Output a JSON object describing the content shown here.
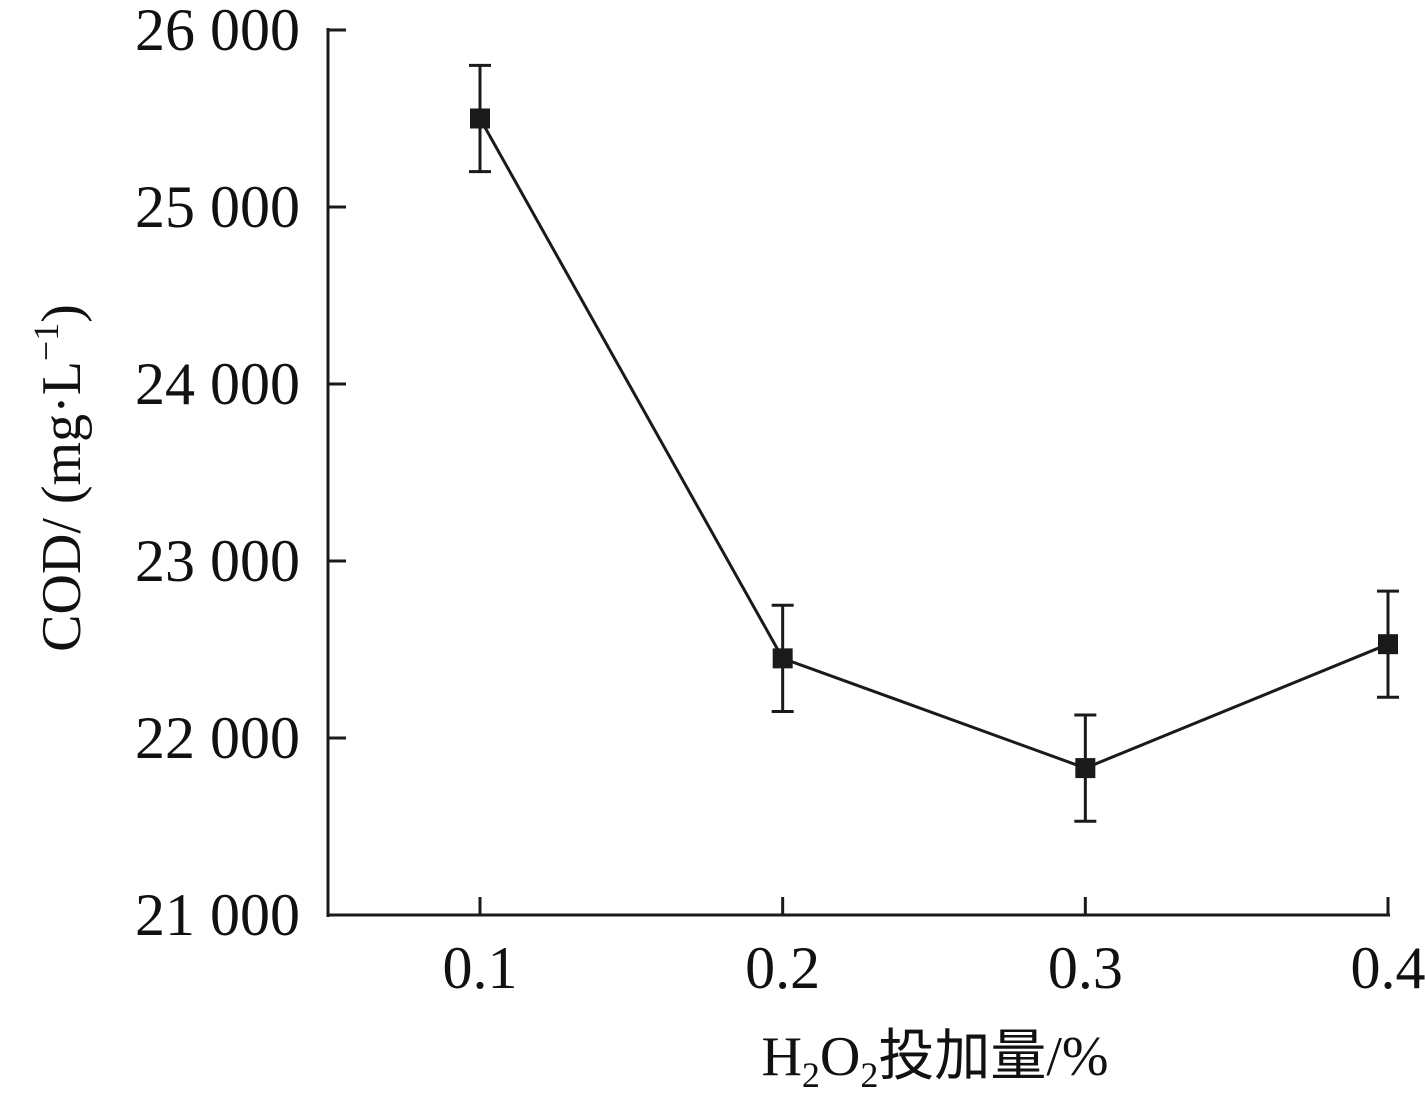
{
  "chart_data": {
    "type": "line",
    "x": [
      0.1,
      0.2,
      0.3,
      0.4
    ],
    "x_tick_labels": [
      "0.1",
      "0.2",
      "0.3",
      "0.4"
    ],
    "series": [
      {
        "values": [
          25500,
          22450,
          21830,
          22530
        ],
        "errors": [
          300,
          300,
          300,
          300
        ]
      }
    ],
    "xlabel_parts": [
      "H",
      "2",
      "O",
      "2",
      "投加量/%"
    ],
    "ylabel_parts": [
      "COD/ (mg·L",
      "−1",
      ")"
    ],
    "ylim": [
      21000,
      26000
    ],
    "y_ticks": [
      21000,
      22000,
      23000,
      24000,
      25000,
      26000
    ],
    "y_tick_labels": [
      "21 000",
      "22 000",
      "23 000",
      "24 000",
      "25 000",
      "26 000"
    ],
    "marker": "square",
    "grid": false,
    "colors": {
      "line": "#1a1a1a",
      "marker": "#1a1a1a",
      "axis": "#1a1a1a"
    }
  }
}
